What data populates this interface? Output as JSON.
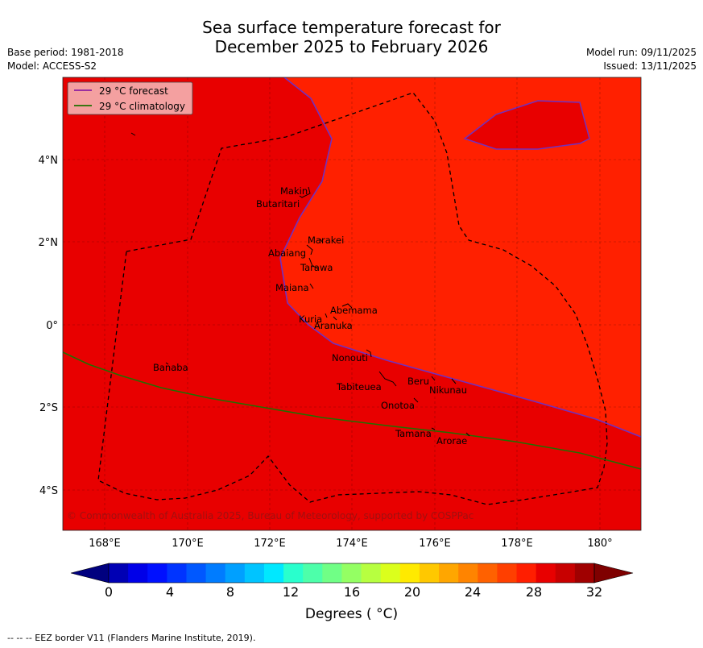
{
  "title": {
    "line1": "Sea surface temperature forecast for",
    "line2": "December 2025 to February 2026"
  },
  "meta": {
    "base_period": "Base period: 1981-2018",
    "model": "Model: ACCESS-S2",
    "model_run": "Model run: 09/11/2025",
    "issued": "Issued: 13/11/2025"
  },
  "legend": {
    "forecast": "29 °C  forecast",
    "climatology": "29 °C  climatology"
  },
  "axes": {
    "x_ticks": [
      "168°E",
      "170°E",
      "172°E",
      "174°E",
      "176°E",
      "178°E",
      "180°"
    ],
    "y_ticks": [
      "4°N",
      "2°N",
      "0°",
      "2°S",
      "4°S"
    ]
  },
  "places": [
    {
      "name": "Makin"
    },
    {
      "name": "Butaritari"
    },
    {
      "name": "Marakei"
    },
    {
      "name": "Abaiang"
    },
    {
      "name": "Tarawa"
    },
    {
      "name": "Maiana"
    },
    {
      "name": "Abemama"
    },
    {
      "name": "Kuria"
    },
    {
      "name": "Aranuka"
    },
    {
      "name": "Nonouti"
    },
    {
      "name": "Banaba"
    },
    {
      "name": "Beru"
    },
    {
      "name": "Nikunau"
    },
    {
      "name": "Tabiteuea"
    },
    {
      "name": "Onotoa"
    },
    {
      "name": "Tamana"
    },
    {
      "name": "Arorae"
    }
  ],
  "copyright": "© Commonwealth of Australia 2025, Bureau of Meteorology, supported by COSPPac",
  "colorbar": {
    "ticks": [
      "0",
      "4",
      "8",
      "12",
      "16",
      "20",
      "24",
      "28",
      "32"
    ],
    "label": "Degrees ( °C)",
    "colors": [
      "#00007f",
      "#0000b4",
      "#0000e8",
      "#0010ff",
      "#0034ff",
      "#0058ff",
      "#007cff",
      "#00a0ff",
      "#00c4ff",
      "#00e8ff",
      "#29ffcd",
      "#4dffaa",
      "#70ff86",
      "#94ff63",
      "#b7ff40",
      "#dbff1c",
      "#ffea00",
      "#ffc800",
      "#ffa600",
      "#ff8400",
      "#ff6100",
      "#ff3f00",
      "#ff1e00",
      "#e80000",
      "#c80000",
      "#a00000",
      "#7f0000"
    ]
  },
  "colors": {
    "warm": "#ff2000",
    "warmer": "#e80000",
    "forecast_line": "#7030c0",
    "climatology_line": "#207000"
  },
  "footer": "--  --  -- EEZ border V11 (Flanders Marine Institute, 2019)."
}
